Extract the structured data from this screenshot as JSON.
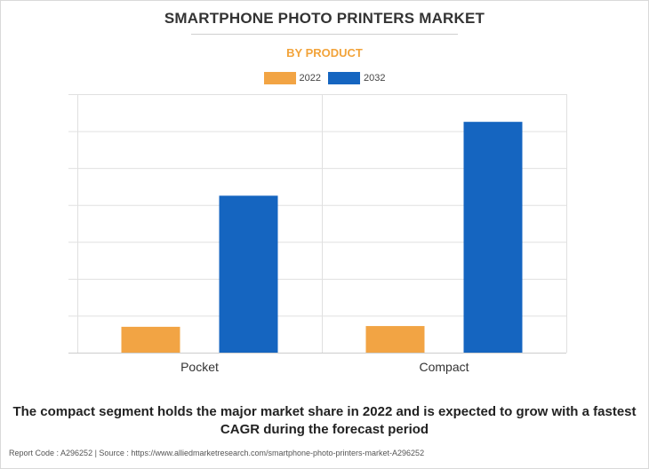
{
  "header": {
    "title": "SMARTPHONE PHOTO PRINTERS MARKET",
    "subtitle": "BY PRODUCT"
  },
  "caption": "The compact segment holds the major market share in 2022 and is expected to grow with a fastest CAGR during the forecast period",
  "footer": {
    "text": "Report Code : A296252  |  Source : https://www.alliedmarketresearch.com/smartphone-photo-printers-market-A296252"
  },
  "colors": {
    "series_2022": "#f2a444",
    "series_2032": "#1565c0",
    "grid": "#e0e0e0"
  },
  "chart_data": {
    "type": "bar",
    "categories": [
      "Pocket",
      "Compact"
    ],
    "series": [
      {
        "name": "2022",
        "values": [
          0.7,
          0.72
        ]
      },
      {
        "name": "2032",
        "values": [
          4.25,
          6.25
        ]
      }
    ],
    "ylim": [
      0,
      7
    ],
    "grid": true,
    "legend": "top-center",
    "xlabel": "",
    "ylabel": ""
  }
}
